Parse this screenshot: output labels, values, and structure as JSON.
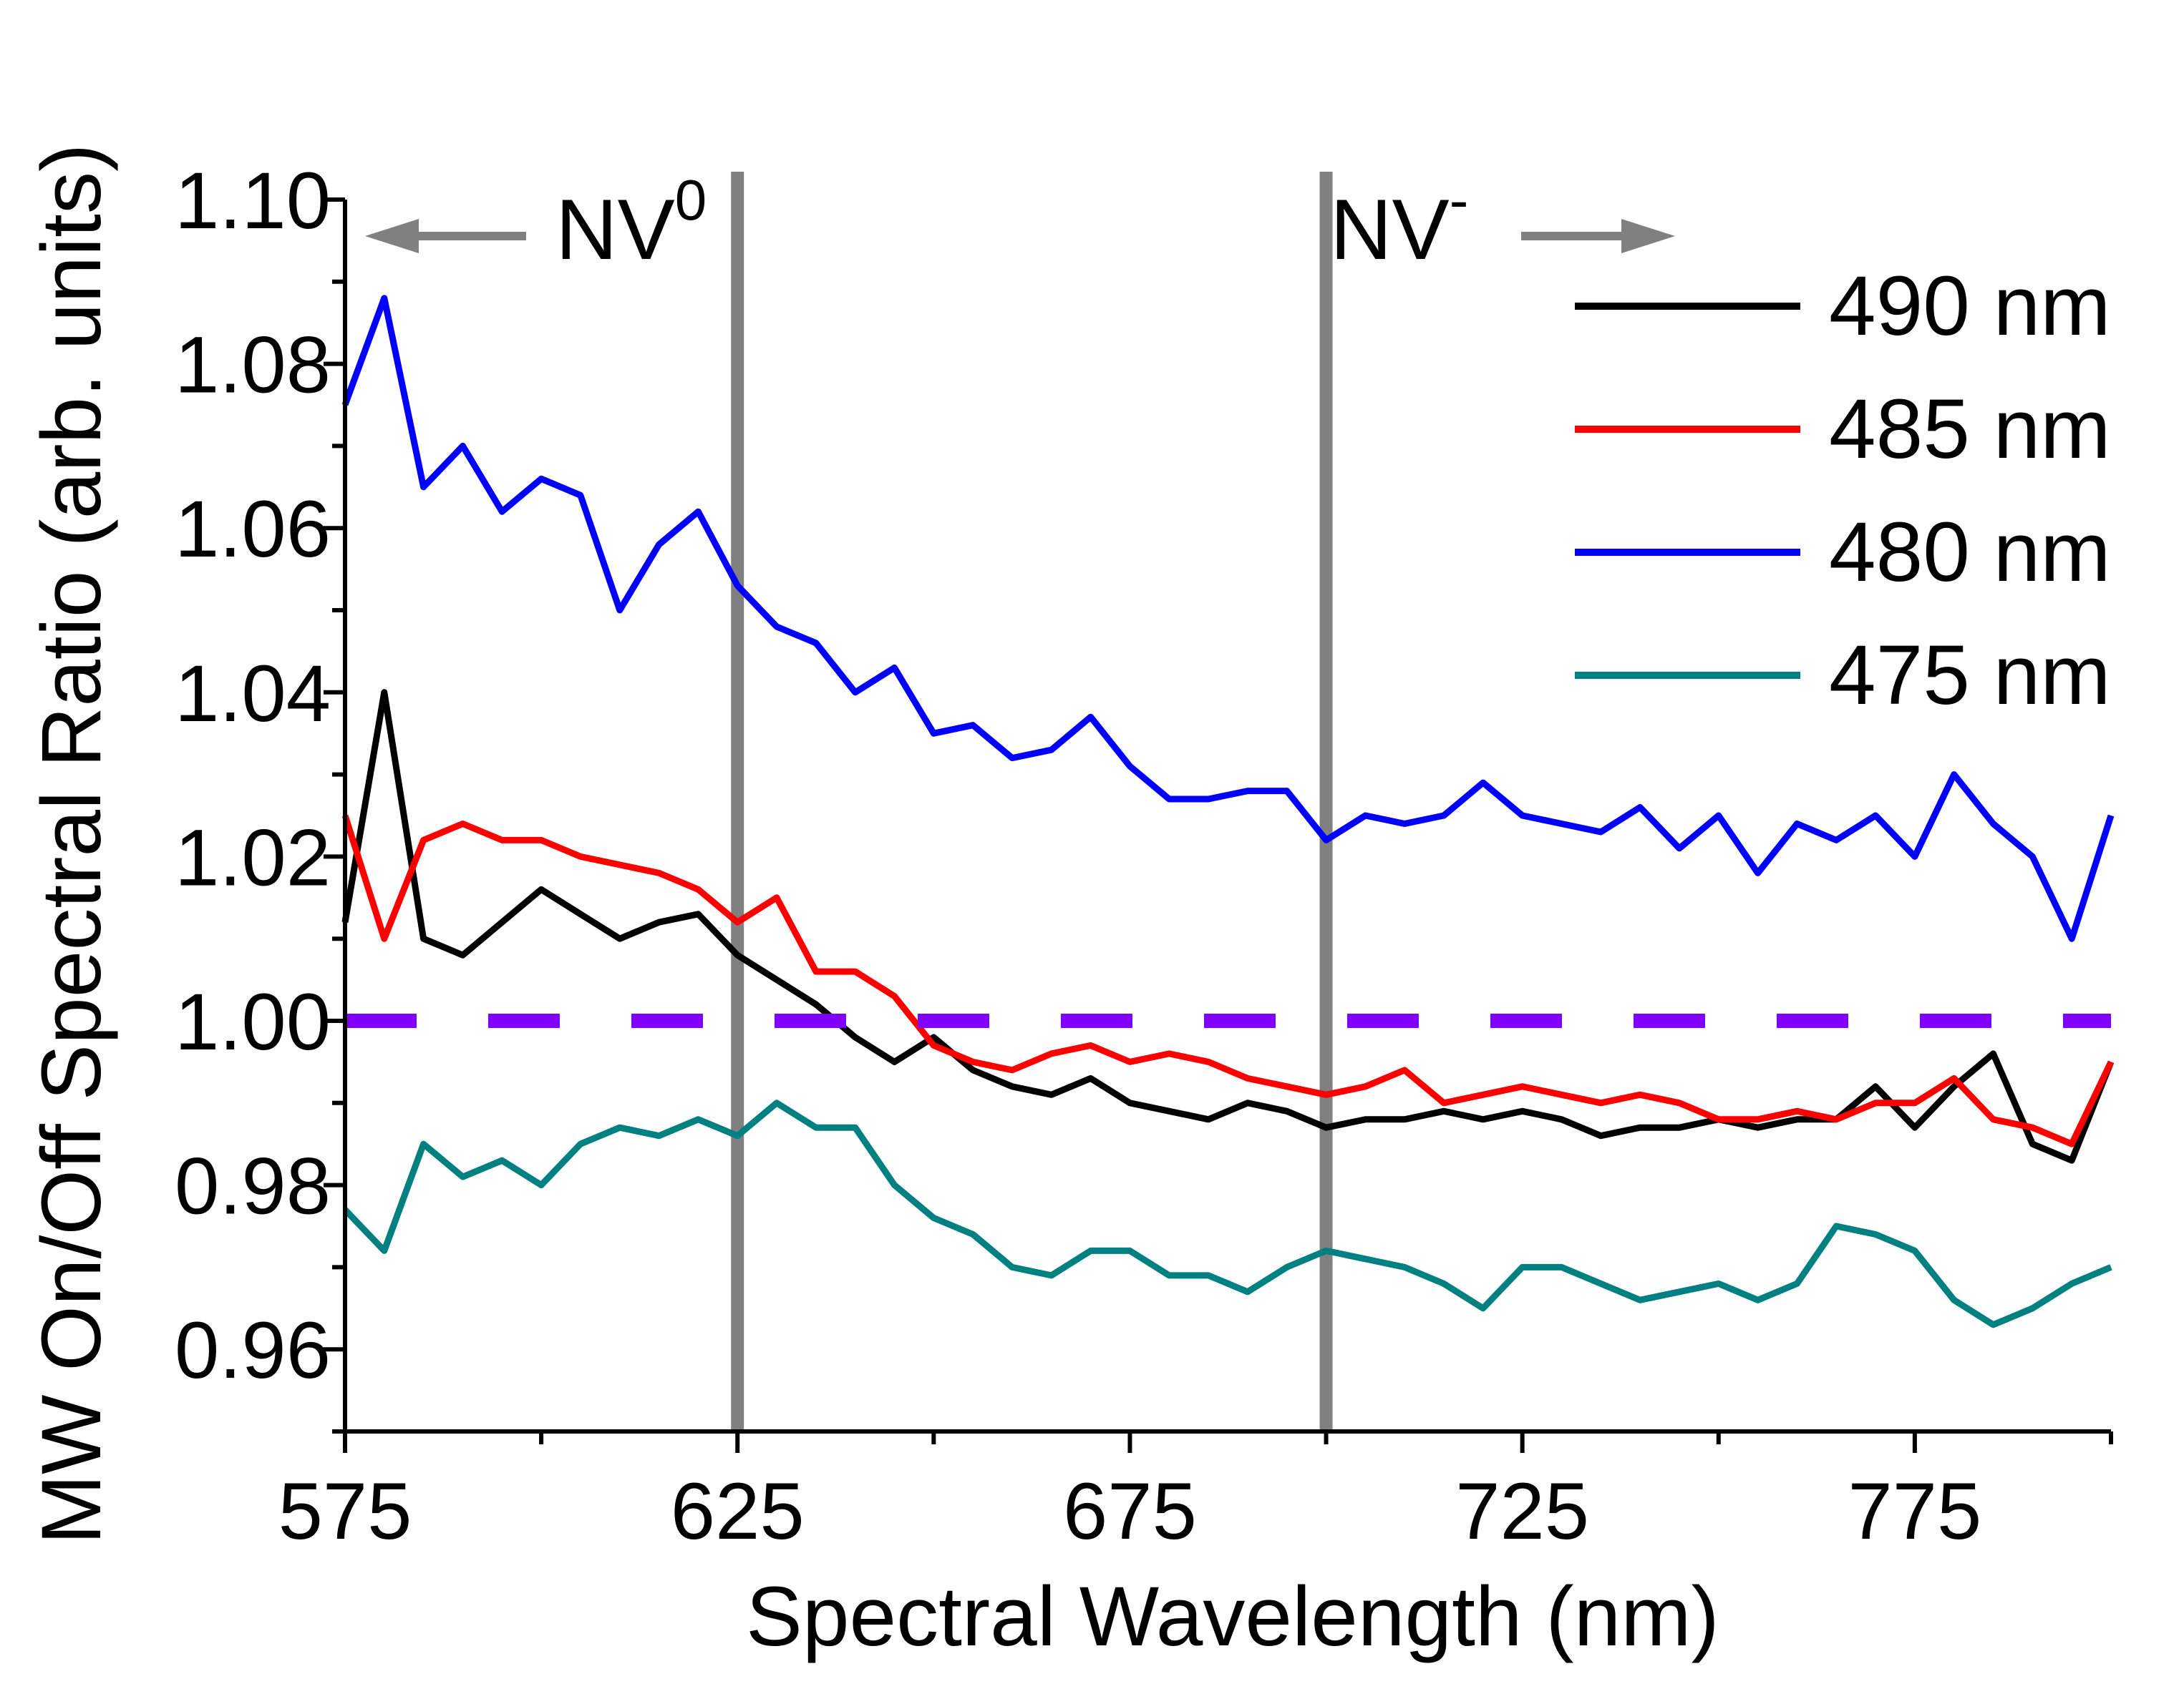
{
  "chart_data": {
    "type": "line",
    "xlabel": "Spectral Wavelength (nm)",
    "ylabel": "MW On/Off Spectral Ratio (arb. units)",
    "xlim": [
      575,
      800
    ],
    "ylim": [
      0.95,
      1.1
    ],
    "xticks": [
      575,
      625,
      675,
      725,
      775
    ],
    "xticks_minor": [
      600,
      650,
      700,
      750,
      800
    ],
    "yticks": [
      0.96,
      0.98,
      {
        "value": 1.0,
        "label": "1.00"
      },
      1.02,
      1.04,
      1.06,
      1.08,
      {
        "value": 1.1,
        "label": "1.10"
      }
    ],
    "yticks_minor": [
      0.95,
      0.97,
      0.99,
      1.01,
      1.03,
      1.05,
      1.07,
      1.09
    ],
    "legend": "upper right",
    "reference_lines": {
      "x": [
        625,
        700
      ],
      "color": "#808080",
      "y": 1.0,
      "y_color": "#8000ff",
      "y_style": "dashed"
    },
    "annotations": [
      {
        "text": "NV",
        "sup": "0",
        "arrow": "left"
      },
      {
        "text": "NV",
        "sup": "-",
        "arrow": "right"
      }
    ],
    "x": [
      575,
      580,
      585,
      590,
      595,
      600,
      605,
      610,
      615,
      620,
      625,
      630,
      635,
      640,
      645,
      650,
      655,
      660,
      665,
      670,
      675,
      680,
      685,
      690,
      695,
      700,
      705,
      710,
      715,
      720,
      725,
      730,
      735,
      740,
      745,
      750,
      755,
      760,
      765,
      770,
      775,
      780,
      785,
      790,
      795,
      800
    ],
    "series": [
      {
        "name": "490 nm",
        "color": "#000000",
        "values": [
          1.012,
          1.04,
          1.01,
          1.008,
          1.012,
          1.016,
          1.013,
          1.01,
          1.012,
          1.013,
          1.008,
          1.005,
          1.002,
          0.998,
          0.995,
          0.998,
          0.994,
          0.992,
          0.991,
          0.993,
          0.99,
          0.989,
          0.988,
          0.99,
          0.989,
          0.987,
          0.988,
          0.988,
          0.989,
          0.988,
          0.989,
          0.988,
          0.986,
          0.987,
          0.987,
          0.988,
          0.987,
          0.988,
          0.988,
          0.992,
          0.987,
          0.992,
          0.996,
          0.985,
          0.983,
          0.995
        ]
      },
      {
        "name": "485 nm",
        "color": "#ff0000",
        "values": [
          1.025,
          1.01,
          1.022,
          1.024,
          1.022,
          1.022,
          1.02,
          1.019,
          1.018,
          1.016,
          1.012,
          1.015,
          1.006,
          1.006,
          1.003,
          0.997,
          0.995,
          0.994,
          0.996,
          0.997,
          0.995,
          0.996,
          0.995,
          0.993,
          0.992,
          0.991,
          0.992,
          0.994,
          0.99,
          0.991,
          0.992,
          0.991,
          0.99,
          0.991,
          0.99,
          0.988,
          0.988,
          0.989,
          0.988,
          0.99,
          0.99,
          0.993,
          0.988,
          0.987,
          0.985,
          0.995
        ]
      },
      {
        "name": "480 nm",
        "color": "#0000ff",
        "values": [
          1.075,
          1.088,
          1.065,
          1.07,
          1.062,
          1.066,
          1.064,
          1.05,
          1.058,
          1.062,
          1.053,
          1.048,
          1.046,
          1.04,
          1.043,
          1.035,
          1.036,
          1.032,
          1.033,
          1.037,
          1.031,
          1.027,
          1.027,
          1.028,
          1.028,
          1.022,
          1.025,
          1.024,
          1.025,
          1.029,
          1.025,
          1.024,
          1.023,
          1.026,
          1.021,
          1.025,
          1.018,
          1.024,
          1.022,
          1.025,
          1.02,
          1.03,
          1.024,
          1.02,
          1.01,
          1.025
        ]
      },
      {
        "name": "475 nm",
        "color": "#008080",
        "values": [
          0.977,
          0.972,
          0.985,
          0.981,
          0.983,
          0.98,
          0.985,
          0.987,
          0.986,
          0.988,
          0.986,
          0.99,
          0.987,
          0.987,
          0.98,
          0.976,
          0.974,
          0.97,
          0.969,
          0.972,
          0.972,
          0.969,
          0.969,
          0.967,
          0.97,
          0.972,
          0.971,
          0.97,
          0.968,
          0.965,
          0.97,
          0.97,
          0.968,
          0.966,
          0.967,
          0.968,
          0.966,
          0.968,
          0.975,
          0.974,
          0.972,
          0.966,
          0.963,
          0.965,
          0.968,
          0.97
        ]
      }
    ]
  }
}
